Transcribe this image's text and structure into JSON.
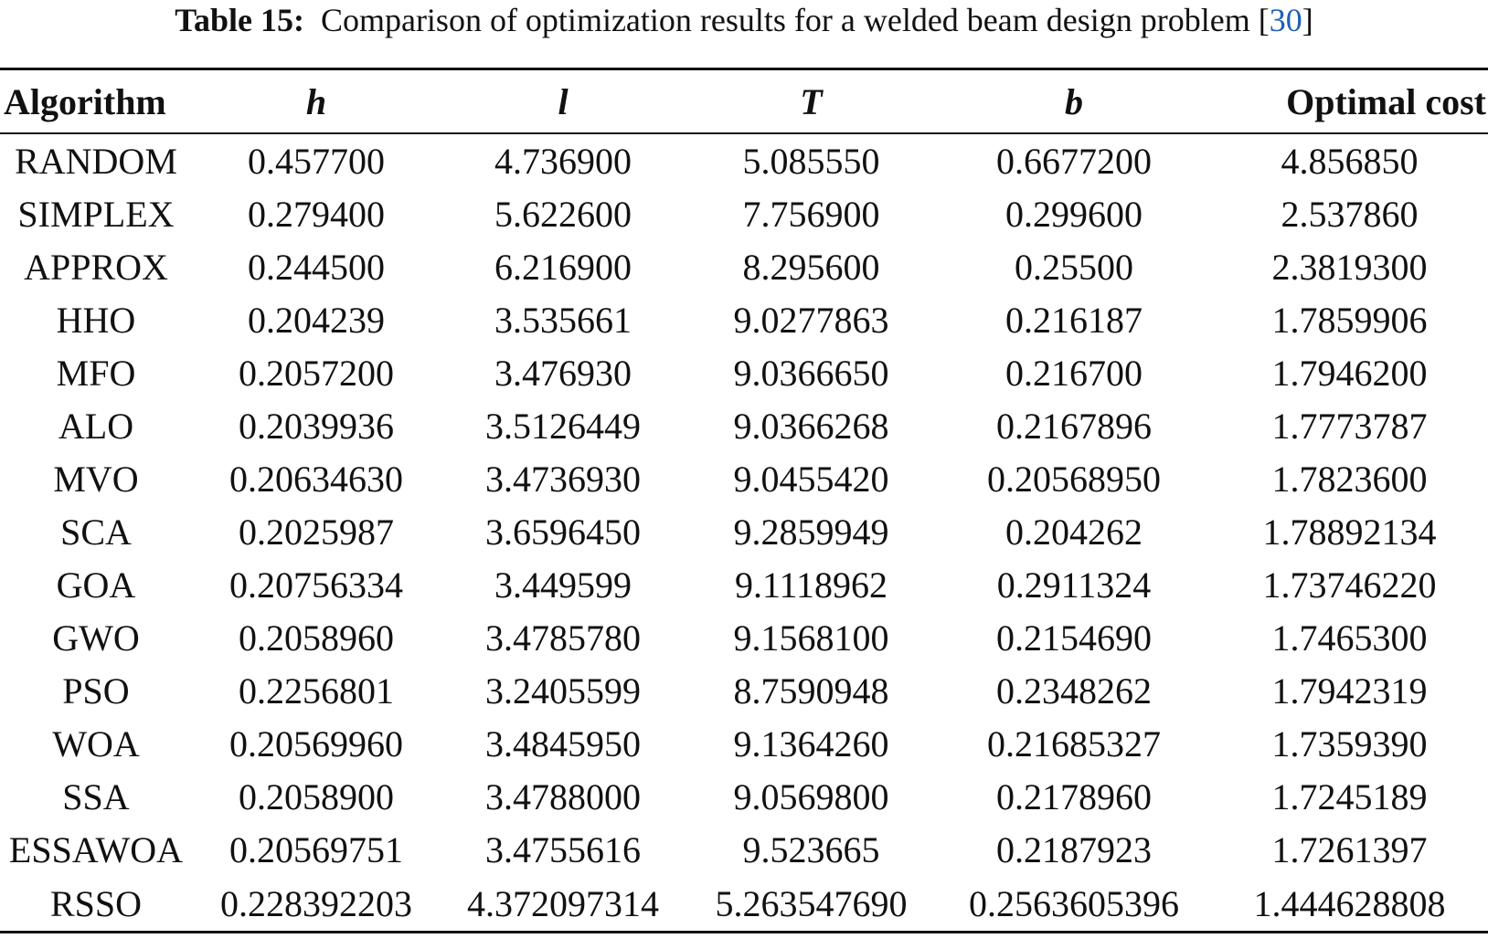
{
  "caption": {
    "label": "Table 15:",
    "text": "Comparison of optimization results for a welded beam design problem ",
    "ref_open": "[",
    "ref": "30",
    "ref_close": "]"
  },
  "table": {
    "headers": [
      "Algorithm",
      "h",
      "l",
      "T",
      "b",
      "Optimal cost"
    ],
    "rows": [
      [
        "RANDOM",
        "0.457700",
        "4.736900",
        "5.085550",
        "0.6677200",
        "4.856850"
      ],
      [
        "SIMPLEX",
        "0.279400",
        "5.622600",
        "7.756900",
        "0.299600",
        "2.537860"
      ],
      [
        "APPROX",
        "0.244500",
        "6.216900",
        "8.295600",
        "0.25500",
        "2.3819300"
      ],
      [
        "HHO",
        "0.204239",
        "3.535661",
        "9.0277863",
        "0.216187",
        "1.7859906"
      ],
      [
        "MFO",
        "0.2057200",
        "3.476930",
        "9.0366650",
        "0.216700",
        "1.7946200"
      ],
      [
        "ALO",
        "0.2039936",
        "3.5126449",
        "9.0366268",
        "0.2167896",
        "1.7773787"
      ],
      [
        "MVO",
        "0.20634630",
        "3.4736930",
        "9.0455420",
        "0.20568950",
        "1.7823600"
      ],
      [
        "SCA",
        "0.2025987",
        "3.6596450",
        "9.2859949",
        "0.204262",
        "1.78892134"
      ],
      [
        "GOA",
        "0.20756334",
        "3.449599",
        "9.1118962",
        "0.2911324",
        "1.73746220"
      ],
      [
        "GWO",
        "0.2058960",
        "3.4785780",
        "9.1568100",
        "0.2154690",
        "1.7465300"
      ],
      [
        "PSO",
        "0.2256801",
        "3.2405599",
        "8.7590948",
        "0.2348262",
        "1.7942319"
      ],
      [
        "WOA",
        "0.20569960",
        "3.4845950",
        "9.1364260",
        "0.21685327",
        "1.7359390"
      ],
      [
        "SSA",
        "0.2058900",
        "3.4788000",
        "9.0569800",
        "0.2178960",
        "1.7245189"
      ],
      [
        "ESSAWOA",
        "0.20569751",
        "3.4755616",
        "9.523665",
        "0.2187923",
        "1.7261397"
      ],
      [
        "RSSO",
        "0.228392203",
        "4.372097314",
        "5.263547690",
        "0.2563605396",
        "1.444628808"
      ]
    ]
  }
}
